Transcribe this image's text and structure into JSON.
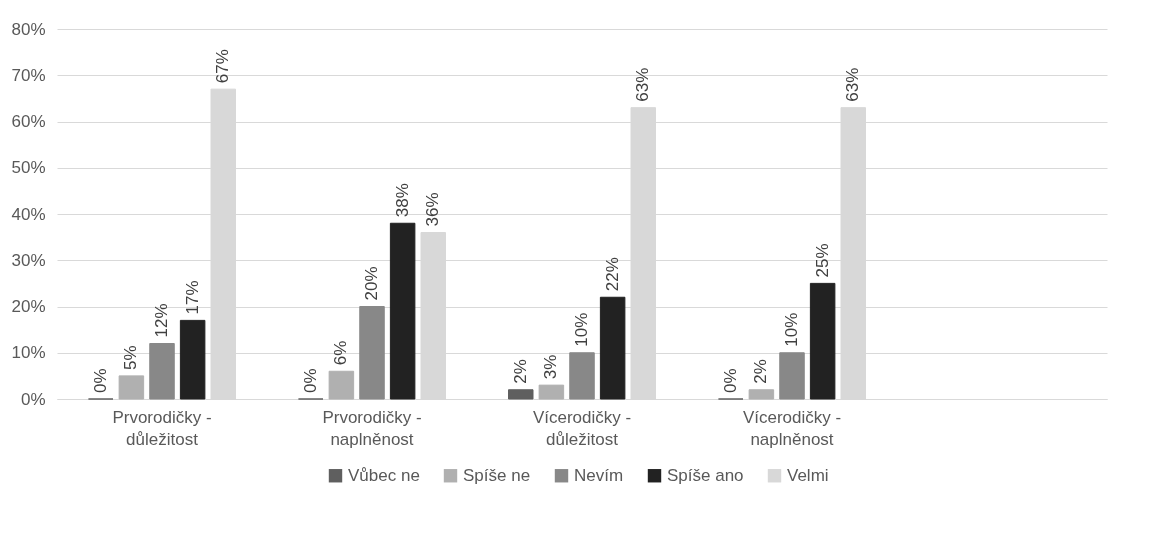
{
  "chart_data": {
    "type": "bar",
    "categories": [
      "Prvorodičky - důležitost",
      "Prvorodičky - naplněnost",
      "Vícerodičky - důležitost",
      "Vícerodičky - naplněnost",
      null
    ],
    "series": [
      {
        "name": "Vůbec ne",
        "color": "#5f5f5f",
        "values": [
          0,
          0,
          2,
          0,
          null
        ],
        "value_labels": [
          "0%",
          "0%",
          "2%",
          "0%",
          null
        ]
      },
      {
        "name": "Spíše ne",
        "color": "#b0b0b0",
        "values": [
          5,
          6,
          3,
          2,
          null
        ],
        "value_labels": [
          "5%",
          "6%",
          "3%",
          "2%",
          null
        ]
      },
      {
        "name": "Nevím",
        "color": "#888888",
        "values": [
          12,
          20,
          10,
          10,
          null
        ],
        "value_labels": [
          "12%",
          "20%",
          "10%",
          "10%",
          null
        ]
      },
      {
        "name": "Spíše ano",
        "color": "#222222",
        "values": [
          17,
          38,
          22,
          25,
          null
        ],
        "value_labels": [
          "17%",
          "38%",
          "22%",
          "25%",
          null
        ]
      },
      {
        "name": "Velmi",
        "color": "#d8d8d8",
        "values": [
          67,
          36,
          63,
          63,
          null
        ],
        "value_labels": [
          "67%",
          "36%",
          "63%",
          "63%",
          null
        ]
      }
    ],
    "ylim": [
      0,
      80
    ],
    "yticks": [
      {
        "value": 0,
        "label": "0%"
      },
      {
        "value": 10,
        "label": "10%"
      },
      {
        "value": 20,
        "label": "20%"
      },
      {
        "value": 30,
        "label": "30%"
      },
      {
        "value": 40,
        "label": "40%"
      },
      {
        "value": 50,
        "label": "50%"
      },
      {
        "value": 60,
        "label": "60%"
      },
      {
        "value": 70,
        "label": "70%"
      },
      {
        "value": 80,
        "label": "80%"
      }
    ],
    "grid": "y",
    "legend": "bottom"
  }
}
